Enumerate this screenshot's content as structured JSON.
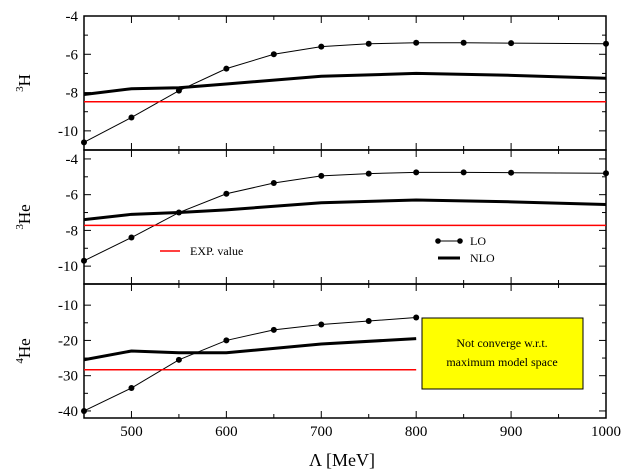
{
  "chart_data": {
    "type": "line",
    "xlabel": "Λ [MeV]",
    "xlim": [
      450,
      1000
    ],
    "xticks": [
      500,
      600,
      700,
      800,
      900,
      1000
    ],
    "legend": {
      "placement": "middle-right (panel 2)"
    },
    "panels": [
      {
        "ylabel_sup": "3",
        "ylabel_base": "H",
        "ylim": [
          -11,
          -4
        ],
        "yticks": [
          -10,
          -8,
          -6,
          -4
        ],
        "series": [
          {
            "name": "LO",
            "x": [
              450,
              500,
              550,
              600,
              650,
              700,
              750,
              800,
              850,
              900,
              1000
            ],
            "y": [
              -10.6,
              -9.3,
              -7.9,
              -6.75,
              -6.0,
              -5.6,
              -5.45,
              -5.4,
              -5.4,
              -5.42,
              -5.45
            ]
          },
          {
            "name": "NLO",
            "x": [
              450,
              500,
              550,
              600,
              700,
              800,
              900,
              1000
            ],
            "y": [
              -8.1,
              -7.8,
              -7.75,
              -7.55,
              -7.15,
              -7.0,
              -7.1,
              -7.25
            ]
          },
          {
            "name": "EXP. value",
            "x": [
              450,
              1000
            ],
            "y": [
              -8.48,
              -8.48
            ]
          }
        ]
      },
      {
        "ylabel_sup": "3",
        "ylabel_base": "He",
        "ylim": [
          -11,
          -3.5
        ],
        "yticks": [
          -10,
          -8,
          -6,
          -4
        ],
        "series": [
          {
            "name": "LO",
            "x": [
              450,
              500,
              550,
              600,
              650,
              700,
              750,
              800,
              850,
              900,
              1000
            ],
            "y": [
              -9.7,
              -8.4,
              -7.0,
              -5.95,
              -5.35,
              -4.95,
              -4.82,
              -4.75,
              -4.75,
              -4.77,
              -4.8
            ]
          },
          {
            "name": "NLO",
            "x": [
              450,
              500,
              550,
              600,
              700,
              800,
              900,
              1000
            ],
            "y": [
              -7.4,
              -7.1,
              -7.0,
              -6.85,
              -6.45,
              -6.3,
              -6.4,
              -6.55
            ]
          },
          {
            "name": "EXP. value",
            "x": [
              450,
              1000
            ],
            "y": [
              -7.72,
              -7.72
            ]
          }
        ]
      },
      {
        "ylabel_sup": "4",
        "ylabel_base": "He",
        "ylim": [
          -42,
          -4
        ],
        "yticks": [
          -40,
          -30,
          -20,
          -10
        ],
        "series": [
          {
            "name": "LO",
            "x": [
              450,
              500,
              550,
              600,
              650,
              700,
              750,
              800
            ],
            "y": [
              -40.0,
              -33.5,
              -25.5,
              -20.0,
              -17.0,
              -15.5,
              -14.5,
              -13.5
            ]
          },
          {
            "name": "NLO",
            "x": [
              450,
              500,
              550,
              600,
              700,
              800
            ],
            "y": [
              -25.5,
              -23.0,
              -23.5,
              -23.5,
              -21.0,
              -19.5
            ]
          },
          {
            "name": "EXP. value",
            "x": [
              450,
              800
            ],
            "y": [
              -28.3,
              -28.3
            ]
          }
        ],
        "annotation": {
          "line1": "Not converge w.r.t.",
          "line2": "maximum model space",
          "background": "#ffff00"
        }
      }
    ],
    "colors": {
      "LO": "#000000",
      "NLO": "#000000",
      "EXP": "#ff0000"
    }
  },
  "legend_labels": {
    "lo": "LO",
    "nlo": "NLO",
    "exp": "EXP. value"
  }
}
